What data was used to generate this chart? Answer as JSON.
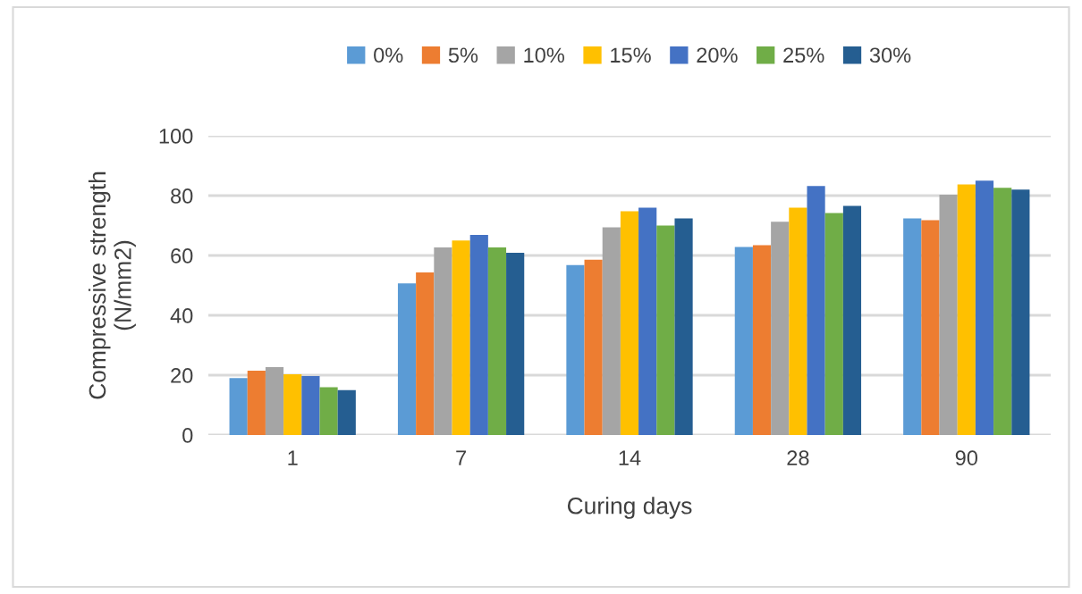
{
  "chart_data": {
    "type": "bar",
    "xlabel": "Curing days",
    "ylabel": "Compressive strength\n(N/mm2)",
    "categories": [
      "1",
      "7",
      "14",
      "28",
      "90"
    ],
    "series": [
      {
        "name": "0%",
        "color": "#5b9bd5",
        "values": [
          19,
          50.7,
          56.8,
          62.8,
          72.4
        ]
      },
      {
        "name": "5%",
        "color": "#ed7d31",
        "values": [
          21.5,
          54.3,
          58.6,
          63.4,
          71.8
        ]
      },
      {
        "name": "10%",
        "color": "#a5a5a5",
        "values": [
          22.7,
          62.7,
          69.4,
          71.3,
          80.3
        ]
      },
      {
        "name": "15%",
        "color": "#ffc000",
        "values": [
          20.3,
          65,
          74.8,
          76,
          83.7
        ]
      },
      {
        "name": "20%",
        "color": "#4472c4",
        "values": [
          19.7,
          66.9,
          76,
          83.2,
          85
        ]
      },
      {
        "name": "25%",
        "color": "#70ad47",
        "values": [
          16,
          62.7,
          70,
          74.2,
          82.6
        ]
      },
      {
        "name": "30%",
        "color": "#255e91",
        "values": [
          15,
          60.9,
          72.4,
          76.6,
          82
        ]
      }
    ],
    "ylim": [
      0,
      100
    ],
    "yticks": [
      0,
      20,
      40,
      60,
      80,
      100
    ],
    "grid": "y",
    "legend": "top"
  }
}
